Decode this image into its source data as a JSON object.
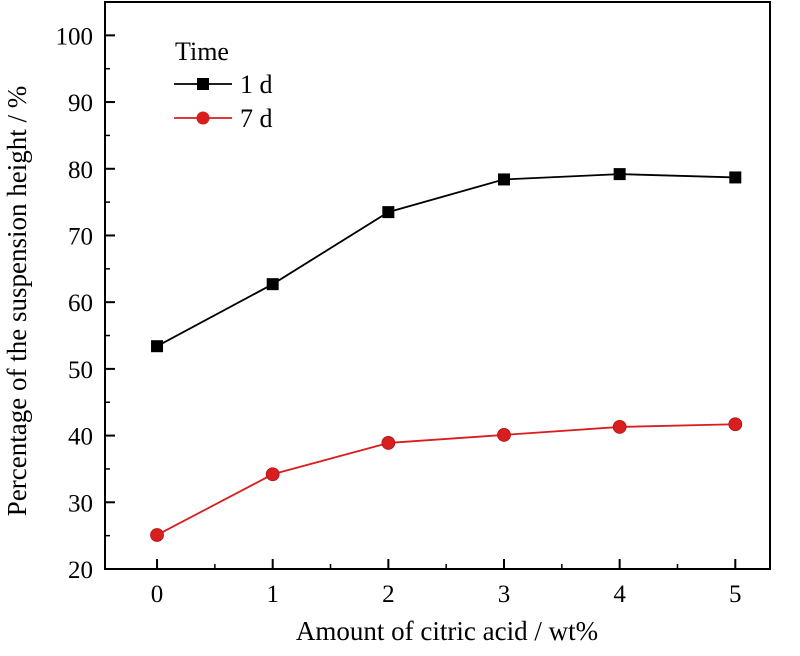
{
  "chart_data": {
    "type": "line",
    "title": "",
    "xlabel": "Amount of citric acid / wt%",
    "ylabel": "Percentage of the suspension height / %",
    "x": [
      0,
      1,
      2,
      3,
      4,
      5
    ],
    "x_ticks": [
      "0",
      "1",
      "2",
      "3",
      "4",
      "5"
    ],
    "xlim": [
      -0.45,
      5.3
    ],
    "ylim": [
      20,
      105
    ],
    "y_ticks": [
      "20",
      "30",
      "40",
      "50",
      "60",
      "70",
      "80",
      "90",
      "100"
    ],
    "grid": false,
    "legend": {
      "title": "Time",
      "placement": "top-left"
    },
    "series": [
      {
        "name": "1 d",
        "color": "#000000",
        "marker": "square",
        "values": [
          53.4,
          62.7,
          73.5,
          78.4,
          79.2,
          78.7
        ]
      },
      {
        "name": "7 d",
        "color": "#d81e1e",
        "marker": "circle",
        "values": [
          25.1,
          34.2,
          38.9,
          40.1,
          41.3,
          41.7
        ]
      }
    ]
  }
}
